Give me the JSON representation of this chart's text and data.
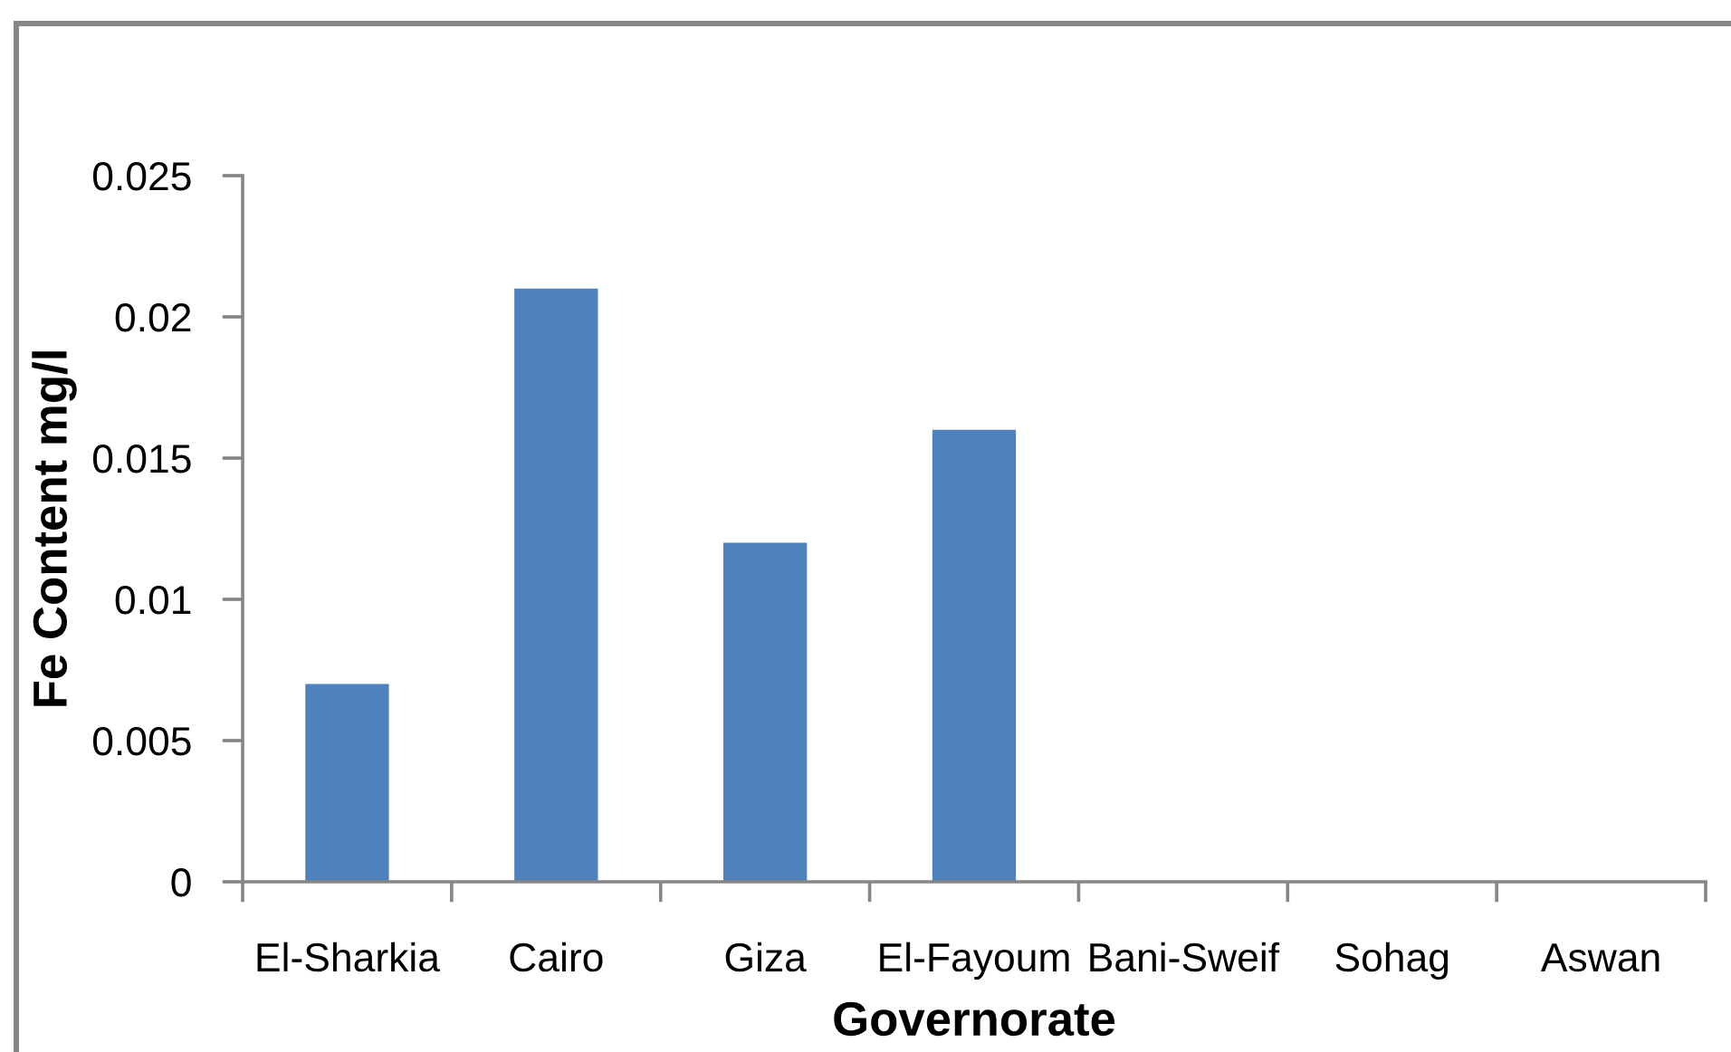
{
  "chart_data": {
    "type": "bar",
    "categories": [
      "El-Sharkia",
      "Cairo",
      "Giza",
      "El-Fayoum",
      "Bani-Sweif",
      "Sohag",
      "Aswan"
    ],
    "values": [
      0.007,
      0.021,
      0.012,
      0.016,
      0,
      0,
      0
    ],
    "color": "#4f81bd",
    "xlabel": "Governorate",
    "ylabel": "Fe Content mg/l",
    "ylim": [
      0,
      0.025
    ],
    "yticks": [
      0,
      0.005,
      0.01,
      0.015,
      0.02,
      0.025
    ]
  }
}
